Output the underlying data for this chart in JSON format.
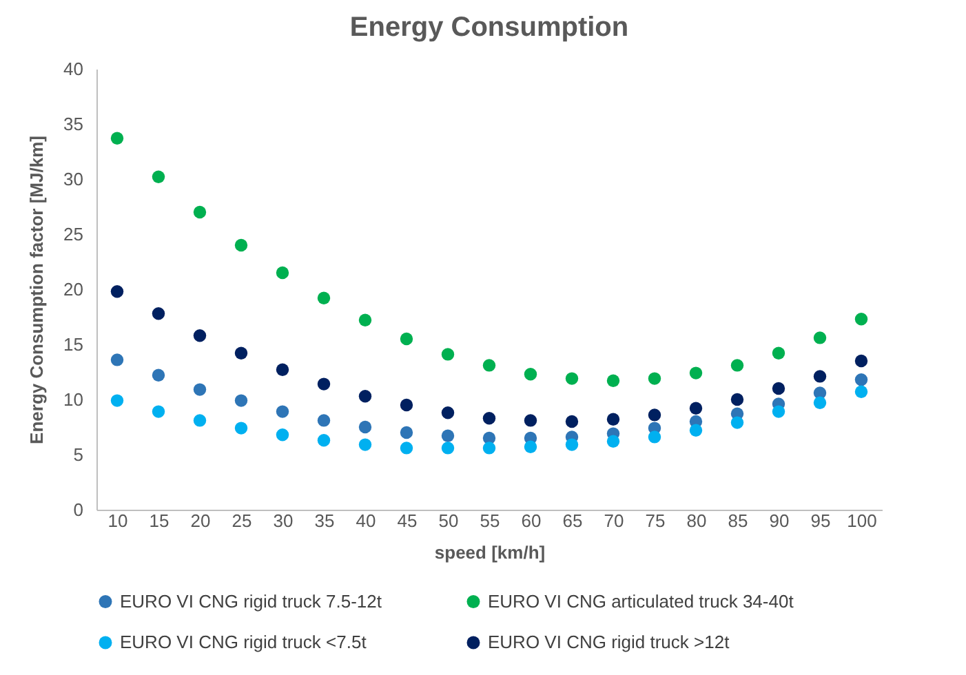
{
  "chart_data": {
    "type": "scatter",
    "title": "Energy Consumption",
    "xlabel": "speed [km/h]",
    "ylabel": "Energy Consumption factor [MJ/km]",
    "categories": [
      "10",
      "15",
      "20",
      "25",
      "30",
      "35",
      "40",
      "45",
      "50",
      "55",
      "60",
      "65",
      "70",
      "75",
      "80",
      "85",
      "90",
      "95",
      "100"
    ],
    "ylim": [
      0,
      40
    ],
    "yticks": [
      0,
      5,
      10,
      15,
      20,
      25,
      30,
      35,
      40
    ],
    "grid": false,
    "legend": "bottom",
    "marker": "circle",
    "series": [
      {
        "name": "EURO VI CNG rigid truck 7.5-12t",
        "color": "#2e75b6",
        "values": [
          13.6,
          12.2,
          10.9,
          9.9,
          8.9,
          8.1,
          7.5,
          7.0,
          6.7,
          6.5,
          6.5,
          6.6,
          6.9,
          7.4,
          8.0,
          8.7,
          9.6,
          10.6,
          11.8
        ]
      },
      {
        "name": "EURO VI CNG articulated truck 34-40t",
        "color": "#00b050",
        "values": [
          33.7,
          30.2,
          27.0,
          24.0,
          21.5,
          19.2,
          17.2,
          15.5,
          14.1,
          13.1,
          12.3,
          11.9,
          11.7,
          11.9,
          12.4,
          13.1,
          14.2,
          15.6,
          17.3
        ]
      },
      {
        "name": "EURO VI CNG rigid truck <7.5t",
        "color": "#00b0f0",
        "values": [
          9.9,
          8.9,
          8.1,
          7.4,
          6.8,
          6.3,
          5.9,
          5.6,
          5.6,
          5.6,
          5.7,
          5.9,
          6.2,
          6.6,
          7.2,
          7.9,
          8.9,
          9.7,
          10.7
        ]
      },
      {
        "name": "EURO VI CNG rigid truck >12t",
        "color": "#002060",
        "values": [
          19.8,
          17.8,
          15.8,
          14.2,
          12.7,
          11.4,
          10.3,
          9.5,
          8.8,
          8.3,
          8.1,
          8.0,
          8.2,
          8.6,
          9.2,
          10.0,
          11.0,
          12.1,
          13.5
        ]
      }
    ]
  }
}
